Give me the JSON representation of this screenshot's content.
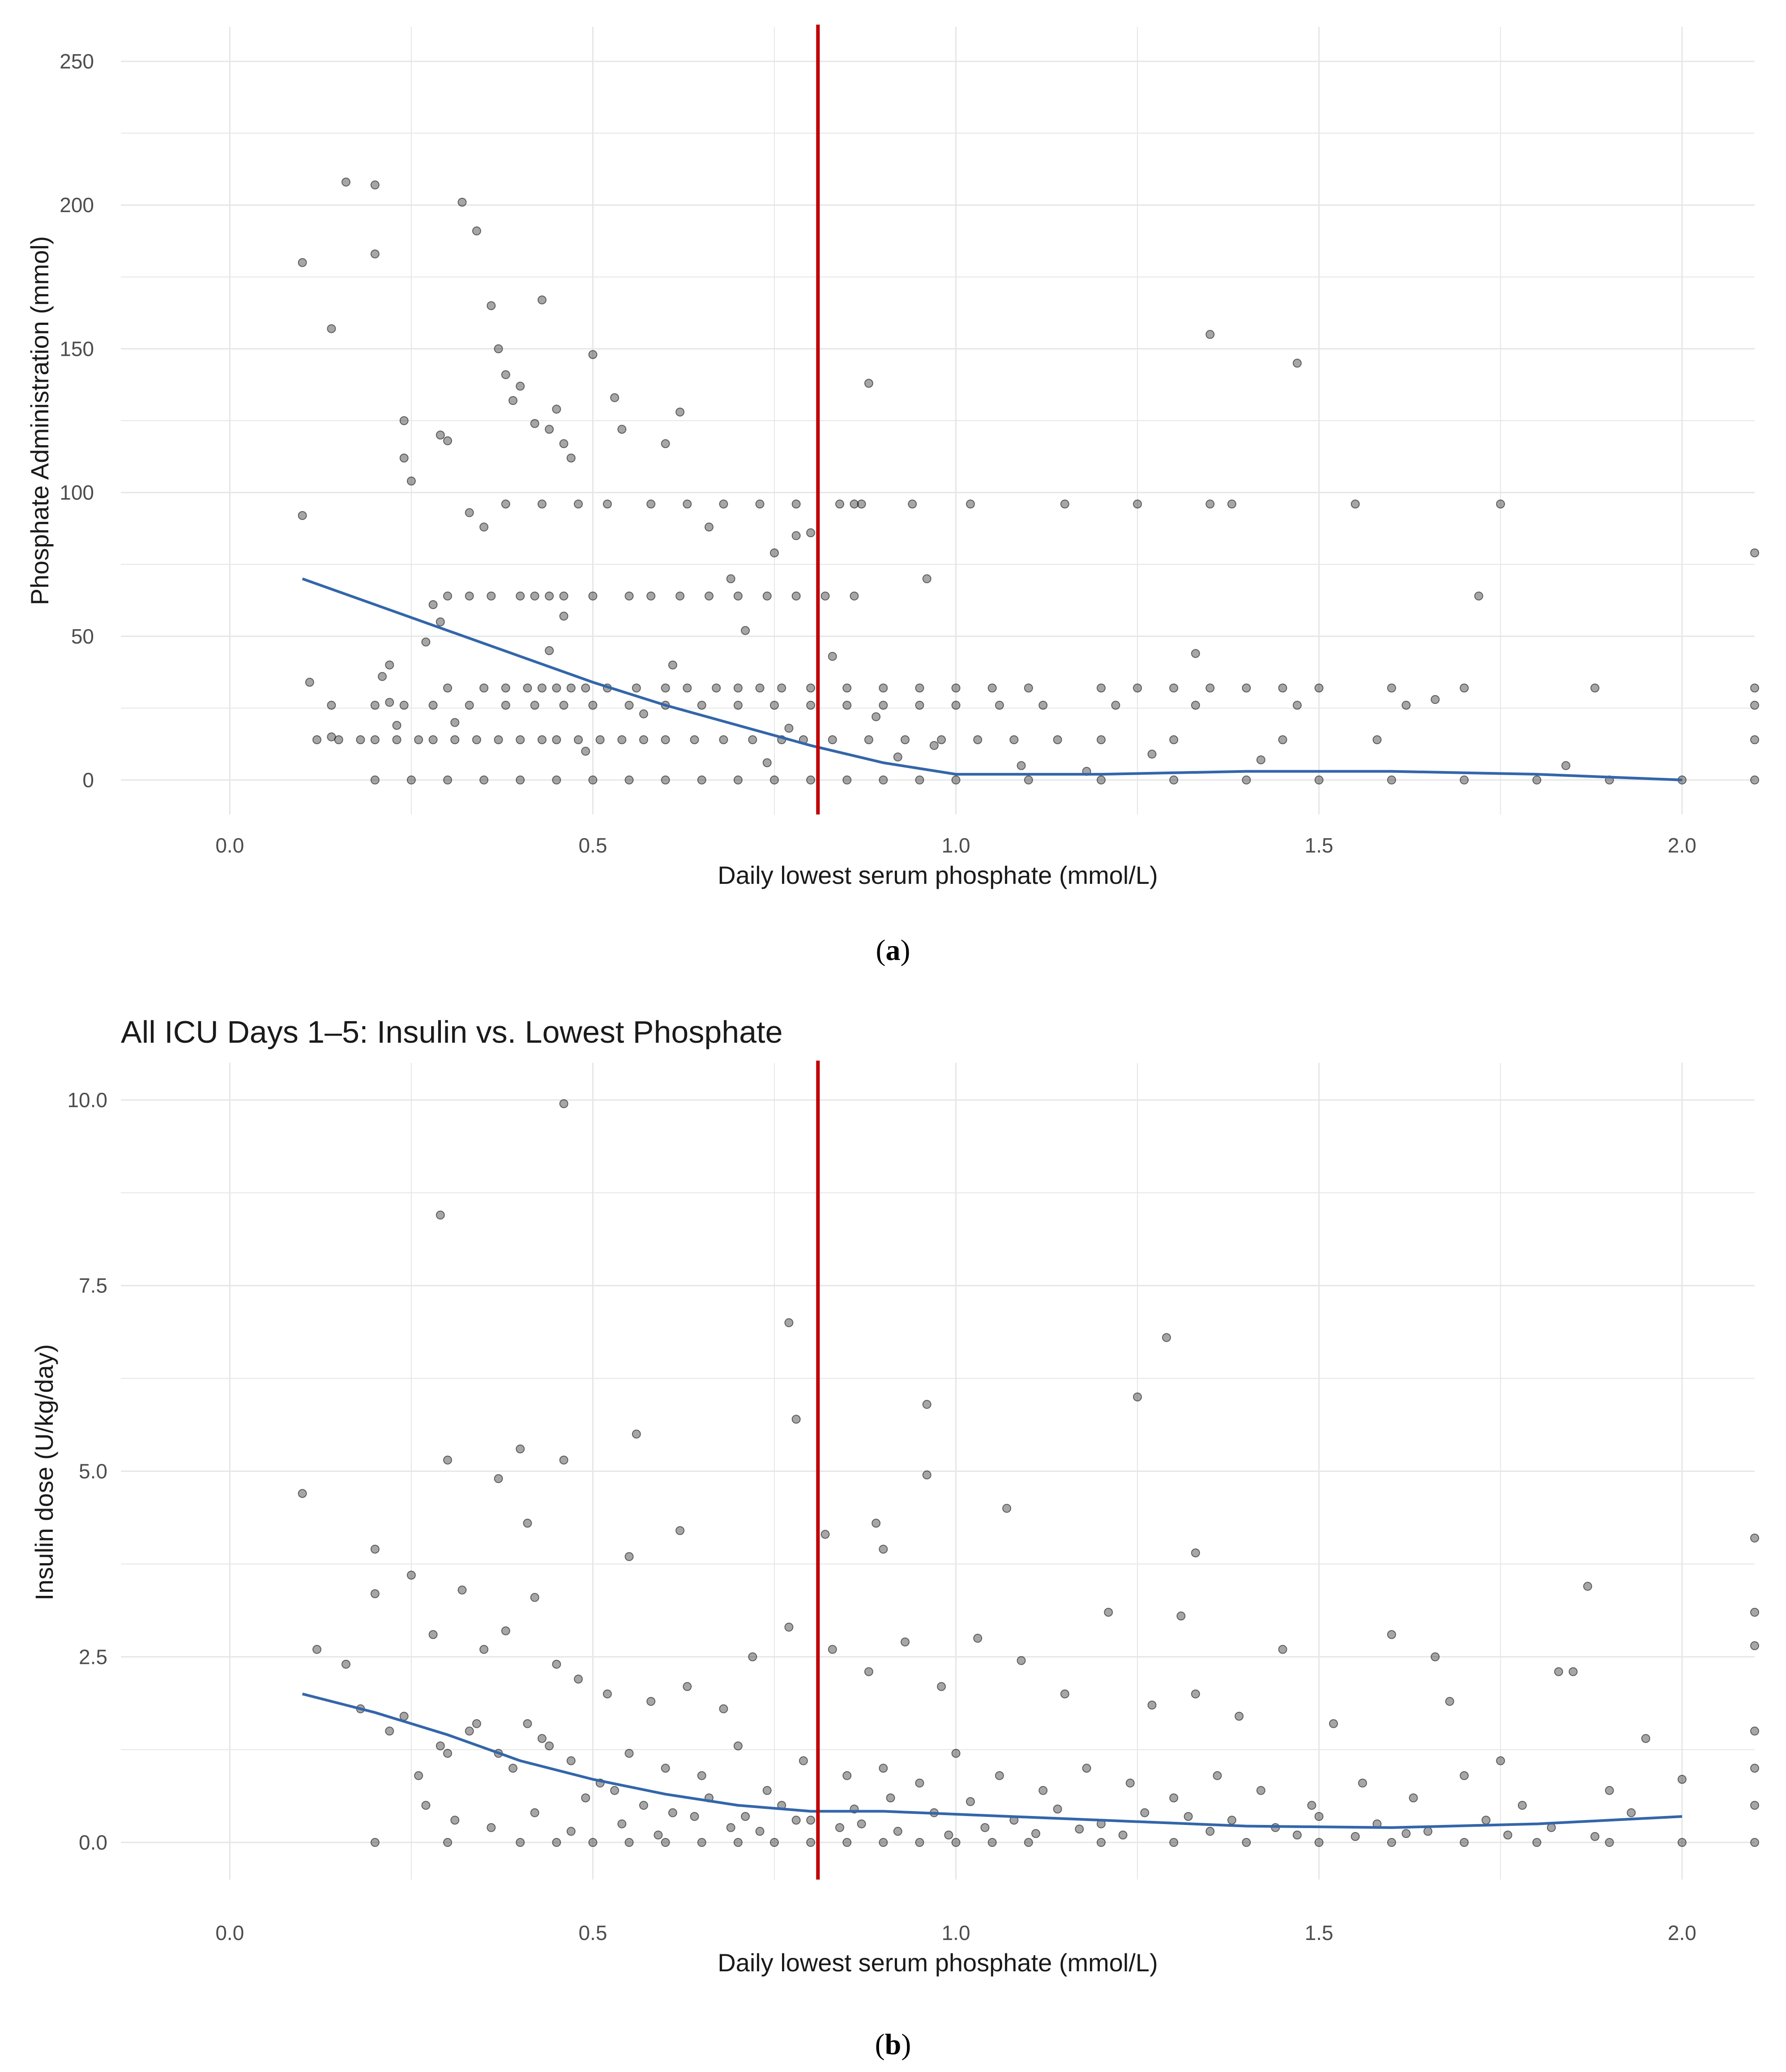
{
  "chart_data": [
    {
      "panel_label": "a",
      "type": "scatter",
      "title": "",
      "xlabel": "Daily lowest serum phosphate (mmol/L)",
      "ylabel": "Phosphate Administration (mmol)",
      "xlim": [
        -0.15,
        2.1
      ],
      "ylim": [
        -12,
        262
      ],
      "xticks": [
        0.0,
        0.5,
        1.0,
        1.5,
        2.0
      ],
      "xtick_labels": [
        "0.0",
        "0.5",
        "1.0",
        "1.5",
        "2.0"
      ],
      "yticks": [
        0,
        50,
        100,
        150,
        200,
        250
      ],
      "ytick_labels": [
        "0",
        "50",
        "100",
        "150",
        "200",
        "250"
      ],
      "grid": true,
      "legend": "none",
      "threshold_x": 0.81,
      "colors": {
        "points": "#000000",
        "smooth": "#3366aa",
        "threshold": "#c00000",
        "grid": "#e6e6e6"
      },
      "smooth_line": {
        "x": [
          0.1,
          0.2,
          0.3,
          0.4,
          0.5,
          0.6,
          0.7,
          0.8,
          0.9,
          1.0,
          1.2,
          1.4,
          1.6,
          1.8,
          2.0
        ],
        "y": [
          70,
          61,
          52,
          43,
          34,
          26,
          19,
          12,
          6,
          2,
          2,
          3,
          3,
          2,
          0
        ]
      },
      "points": {
        "x": [
          0.1,
          0.1,
          0.14,
          0.16,
          0.2,
          0.2,
          0.11,
          0.14,
          0.21,
          0.22,
          0.22,
          0.23,
          0.24,
          0.24,
          0.25,
          0.28,
          0.29,
          0.3,
          0.32,
          0.33,
          0.34,
          0.35,
          0.36,
          0.37,
          0.38,
          0.39,
          0.4,
          0.42,
          0.43,
          0.44,
          0.45,
          0.46,
          0.47,
          0.5,
          0.53,
          0.54,
          0.6,
          0.62,
          0.66,
          0.75,
          0.78,
          0.8,
          0.84,
          0.87,
          0.88,
          0.96,
          1.35,
          1.35,
          1.47,
          1.72,
          2.1,
          0.3,
          0.33,
          0.36,
          0.4,
          0.42,
          0.44,
          0.46,
          0.5,
          0.55,
          0.58,
          0.62,
          0.66,
          0.7,
          0.74,
          0.78,
          0.82,
          0.86,
          0.3,
          0.35,
          0.38,
          0.41,
          0.43,
          0.45,
          0.47,
          0.49,
          0.52,
          0.56,
          0.6,
          0.63,
          0.67,
          0.7,
          0.73,
          0.76,
          0.8,
          0.85,
          0.9,
          0.95,
          1.0,
          1.05,
          1.1,
          1.2,
          1.25,
          1.3,
          1.35,
          1.4,
          1.45,
          1.5,
          1.6,
          1.7,
          1.88,
          2.1,
          0.12,
          0.15,
          0.18,
          0.2,
          0.23,
          0.26,
          0.28,
          0.31,
          0.34,
          0.37,
          0.4,
          0.43,
          0.45,
          0.48,
          0.51,
          0.54,
          0.57,
          0.6,
          0.64,
          0.68,
          0.72,
          0.76,
          0.79,
          0.83,
          0.88,
          0.93,
          0.98,
          1.03,
          1.08,
          1.14,
          1.2,
          1.3,
          1.45,
          1.58,
          2.1,
          0.14,
          0.2,
          0.24,
          0.28,
          0.33,
          0.38,
          0.42,
          0.46,
          0.5,
          0.55,
          0.6,
          0.65,
          0.7,
          0.75,
          0.8,
          0.85,
          0.9,
          0.95,
          1.0,
          1.06,
          1.12,
          1.22,
          1.33,
          1.47,
          1.62,
          2.1,
          0.2,
          0.25,
          0.3,
          0.35,
          0.4,
          0.45,
          0.5,
          0.55,
          0.6,
          0.65,
          0.7,
          0.75,
          0.8,
          0.85,
          0.9,
          0.95,
          1.0,
          1.1,
          1.2,
          1.3,
          1.4,
          1.5,
          1.6,
          1.7,
          1.8,
          1.9,
          2.0,
          2.1,
          0.38,
          0.43,
          0.48,
          0.52,
          0.58,
          0.63,
          0.68,
          0.73,
          0.78,
          0.86,
          0.94,
          1.02,
          1.15,
          1.25,
          1.38,
          1.55,
          1.75,
          0.27,
          0.29,
          0.31,
          0.44,
          0.46,
          0.49,
          0.57,
          0.61,
          0.69,
          0.71,
          0.74,
          0.77,
          0.83,
          0.89,
          0.92,
          0.97,
          1.09,
          1.18,
          1.27,
          1.33,
          1.42,
          1.66,
          1.84
        ],
        "y": [
          180,
          92,
          157,
          208,
          207,
          183,
          34,
          15,
          36,
          40,
          27,
          19,
          125,
          112,
          104,
          61,
          120,
          118,
          201,
          93,
          191,
          88,
          165,
          150,
          141,
          132,
          137,
          124,
          167,
          122,
          129,
          117,
          112,
          148,
          133,
          122,
          117,
          128,
          88,
          79,
          85,
          86,
          96,
          96,
          138,
          70,
          155,
          96,
          145,
          64,
          79,
          64,
          64,
          64,
          64,
          64,
          64,
          64,
          64,
          64,
          64,
          64,
          64,
          64,
          64,
          64,
          64,
          64,
          32,
          32,
          32,
          32,
          32,
          32,
          32,
          32,
          32,
          32,
          32,
          32,
          32,
          32,
          32,
          32,
          32,
          32,
          32,
          32,
          32,
          32,
          32,
          32,
          32,
          32,
          32,
          32,
          32,
          32,
          32,
          32,
          32,
          32,
          14,
          14,
          14,
          14,
          14,
          14,
          14,
          14,
          14,
          14,
          14,
          14,
          14,
          14,
          14,
          14,
          14,
          14,
          14,
          14,
          14,
          14,
          14,
          14,
          14,
          14,
          14,
          14,
          14,
          14,
          14,
          14,
          14,
          14,
          14,
          26,
          26,
          26,
          26,
          26,
          26,
          26,
          26,
          26,
          26,
          26,
          26,
          26,
          26,
          26,
          26,
          26,
          26,
          26,
          26,
          26,
          26,
          26,
          26,
          26,
          26,
          0,
          0,
          0,
          0,
          0,
          0,
          0,
          0,
          0,
          0,
          0,
          0,
          0,
          0,
          0,
          0,
          0,
          0,
          0,
          0,
          0,
          0,
          0,
          0,
          0,
          0,
          0,
          0,
          96,
          96,
          96,
          96,
          96,
          96,
          96,
          96,
          96,
          96,
          96,
          96,
          96,
          96,
          96,
          96,
          96,
          48,
          55,
          20,
          45,
          57,
          10,
          23,
          40,
          70,
          52,
          6,
          18,
          43,
          22,
          8,
          12,
          5,
          3,
          9,
          44,
          7,
          28,
          5
        ]
      }
    },
    {
      "panel_label": "b",
      "type": "scatter",
      "title": "All ICU Days 1–5: Insulin vs. Lowest Phosphate",
      "xlabel": "Daily lowest serum phosphate (mmol/L)",
      "ylabel": "Insulin dose (U/kg/day)",
      "xlim": [
        -0.15,
        2.1
      ],
      "ylim": [
        -0.5,
        10.5
      ],
      "xticks": [
        0.0,
        0.5,
        1.0,
        1.5,
        2.0
      ],
      "xtick_labels": [
        "0.0",
        "0.5",
        "1.0",
        "1.5",
        "2.0"
      ],
      "yticks": [
        0.0,
        2.5,
        5.0,
        7.5,
        10.0
      ],
      "ytick_labels": [
        "0.0",
        "2.5",
        "5.0",
        "7.5",
        "10.0"
      ],
      "grid": true,
      "legend": "none",
      "threshold_x": 0.81,
      "colors": {
        "points": "#000000",
        "smooth": "#3366aa",
        "threshold": "#c00000",
        "grid": "#e6e6e6"
      },
      "smooth_line": {
        "x": [
          0.1,
          0.2,
          0.3,
          0.4,
          0.5,
          0.6,
          0.7,
          0.8,
          0.9,
          1.0,
          1.2,
          1.4,
          1.6,
          1.8,
          2.0
        ],
        "y": [
          2.0,
          1.75,
          1.45,
          1.1,
          0.85,
          0.65,
          0.5,
          0.42,
          0.42,
          0.38,
          0.3,
          0.22,
          0.2,
          0.25,
          0.35
        ]
      },
      "points": {
        "x": [
          0.46,
          0.29,
          0.3,
          0.77,
          0.78,
          0.96,
          0.96,
          1.29,
          1.25,
          0.1,
          0.4,
          0.37,
          0.41,
          0.46,
          0.56,
          0.55,
          0.62,
          0.89,
          0.9,
          0.82,
          1.07,
          1.33,
          1.31,
          1.87,
          1.83,
          1.66,
          2.1,
          2.1,
          2.1,
          0.2,
          0.2,
          0.25,
          0.28,
          0.32,
          0.35,
          0.38,
          0.42,
          0.45,
          0.48,
          0.52,
          0.58,
          0.63,
          0.68,
          0.72,
          0.77,
          0.83,
          0.88,
          0.93,
          0.98,
          1.03,
          1.09,
          1.15,
          1.21,
          1.27,
          1.33,
          1.39,
          1.45,
          1.52,
          1.6,
          1.68,
          1.75,
          1.85,
          1.95,
          0.12,
          0.16,
          0.22,
          0.26,
          0.3,
          0.34,
          0.39,
          0.43,
          0.47,
          0.51,
          0.55,
          0.6,
          0.65,
          0.7,
          0.74,
          0.79,
          0.85,
          0.9,
          0.95,
          1.0,
          1.06,
          1.12,
          1.18,
          1.24,
          1.3,
          1.36,
          1.42,
          1.49,
          1.56,
          1.63,
          1.7,
          1.78,
          1.9,
          2.0,
          0.18,
          0.24,
          0.29,
          0.33,
          0.37,
          0.41,
          0.44,
          0.49,
          0.53,
          0.57,
          0.61,
          0.66,
          0.71,
          0.76,
          0.8,
          0.86,
          0.91,
          0.97,
          1.02,
          1.08,
          1.14,
          1.2,
          1.26,
          1.32,
          1.38,
          1.44,
          1.5,
          1.58,
          1.65,
          1.73,
          1.82,
          1.93,
          0.2,
          0.3,
          0.4,
          0.45,
          0.5,
          0.55,
          0.6,
          0.65,
          0.7,
          0.75,
          0.8,
          0.85,
          0.9,
          0.95,
          1.0,
          1.05,
          1.1,
          1.2,
          1.3,
          1.4,
          1.5,
          1.6,
          1.7,
          1.8,
          1.9,
          2.0,
          2.1,
          2.1,
          2.1,
          2.1,
          0.27,
          0.31,
          0.36,
          0.42,
          0.47,
          0.54,
          0.59,
          0.64,
          0.69,
          0.73,
          0.78,
          0.84,
          0.87,
          0.92,
          0.99,
          1.04,
          1.11,
          1.17,
          1.23,
          1.35,
          1.47,
          1.55,
          1.62,
          1.76,
          1.88
        ],
        "y": [
          9.95,
          8.45,
          5.15,
          7.0,
          5.7,
          5.9,
          4.95,
          6.8,
          6.0,
          4.7,
          5.3,
          4.9,
          4.3,
          5.15,
          5.5,
          3.85,
          4.2,
          4.3,
          3.95,
          4.15,
          4.5,
          3.9,
          3.05,
          3.45,
          2.3,
          2.5,
          4.1,
          3.1,
          2.65,
          3.95,
          3.35,
          3.6,
          2.8,
          3.4,
          2.6,
          2.85,
          3.3,
          2.4,
          2.2,
          2.0,
          1.9,
          2.1,
          1.8,
          2.5,
          2.9,
          2.6,
          2.3,
          2.7,
          2.1,
          2.75,
          2.45,
          2.0,
          3.1,
          1.85,
          2.0,
          1.7,
          2.6,
          1.6,
          2.8,
          1.9,
          1.1,
          2.3,
          1.4,
          2.6,
          2.4,
          1.5,
          0.9,
          1.2,
          1.6,
          1.0,
          1.4,
          1.1,
          0.8,
          1.2,
          1.0,
          0.9,
          1.3,
          0.7,
          1.1,
          0.9,
          1.0,
          0.8,
          1.2,
          0.9,
          0.7,
          1.0,
          0.8,
          0.6,
          0.9,
          0.7,
          0.5,
          0.8,
          0.6,
          0.9,
          0.5,
          0.7,
          0.85,
          1.8,
          1.7,
          1.3,
          1.5,
          1.2,
          1.6,
          1.3,
          0.6,
          0.7,
          0.5,
          0.4,
          0.6,
          0.35,
          0.5,
          0.3,
          0.45,
          0.6,
          0.4,
          0.55,
          0.3,
          0.45,
          0.25,
          0.4,
          0.35,
          0.3,
          0.2,
          0.35,
          0.25,
          0.15,
          0.3,
          0.2,
          0.4,
          0,
          0,
          0,
          0,
          0,
          0,
          0,
          0,
          0,
          0,
          0,
          0,
          0,
          0,
          0,
          0,
          0,
          0,
          0,
          0,
          0,
          0,
          0,
          0,
          0,
          0,
          0,
          0.5,
          1.0,
          1.5,
          0.5,
          0.3,
          0.2,
          0.4,
          0.15,
          0.25,
          0.1,
          0.35,
          0.2,
          0.15,
          0.3,
          0.2,
          0.25,
          0.15,
          0.1,
          0.2,
          0.12,
          0.18,
          0.1,
          0.15,
          0.1,
          0.08,
          0.12,
          0.1,
          0.08
        ]
      }
    }
  ],
  "captions": {
    "a": "a",
    "b": "b"
  }
}
